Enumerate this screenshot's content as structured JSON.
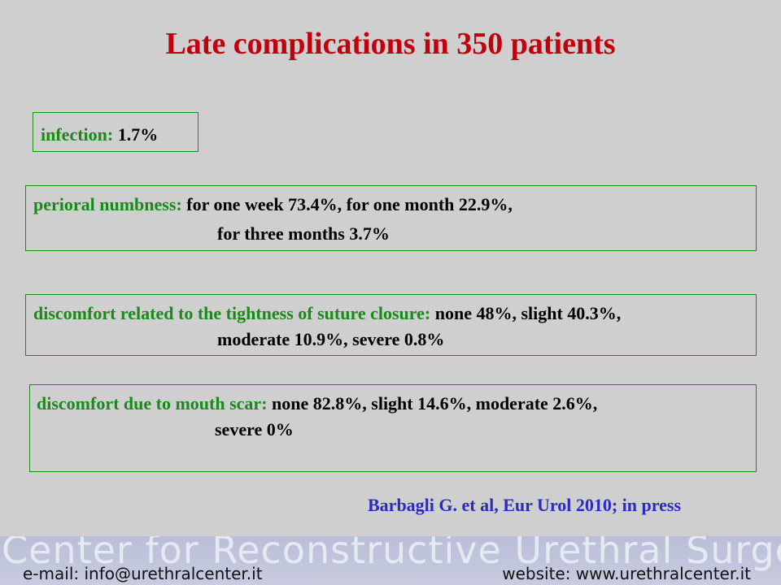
{
  "title": "Late complications in 350 patients",
  "infection": {
    "label": "infection:",
    "value": "1.7%"
  },
  "numbness": {
    "label": "perioral numbness:",
    "line1": "for one week 73.4%, for one month 22.9%,",
    "line2": "for three months 3.7%"
  },
  "tightness": {
    "label": "discomfort related to the tightness of suture closure:",
    "line1": "none 48%, slight 40.3%,",
    "line2": "moderate 10.9%, severe 0.8%"
  },
  "scar": {
    "label": "discomfort due to mouth scar:",
    "line1": "none 82.8%, slight 14.6%, moderate 2.6%,",
    "line2": "severe 0%"
  },
  "citation": "Barbagli G. et al, Eur Urol 2010; in press",
  "footer": {
    "banner": "Center for Reconstructive Urethral Surgery",
    "email": "e-mail: info@urethralcenter.it",
    "website": "website: www.urethralcenter.it"
  }
}
